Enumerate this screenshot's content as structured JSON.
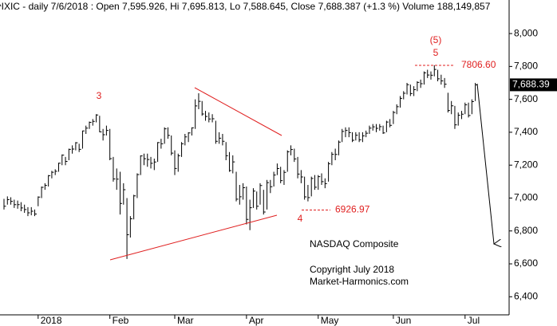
{
  "chart_data": {
    "type": "ohlc",
    "title": "^IXIC - daily 7/6/2018 : Open 7,595.926, Hi 7,695.813, Lo 7,588.645, Close 7,688.387 (+1.3 %) Volume 188,149,857",
    "categories": [
      null,
      null,
      null,
      null,
      null,
      null,
      null,
      null,
      null,
      null,
      "2018",
      null,
      null,
      null,
      null,
      null,
      null,
      null,
      null,
      null,
      null,
      null,
      null,
      null,
      null,
      null,
      null,
      null,
      null,
      null,
      null,
      "Feb",
      null,
      null,
      null,
      null,
      null,
      null,
      null,
      null,
      null,
      null,
      null,
      null,
      null,
      null,
      null,
      null,
      null,
      null,
      "Mar",
      null,
      null,
      null,
      null,
      null,
      null,
      null,
      null,
      null,
      null,
      null,
      null,
      null,
      null,
      null,
      null,
      null,
      null,
      null,
      null,
      "Apr",
      null,
      null,
      null,
      null,
      null,
      null,
      null,
      null,
      null,
      null,
      null,
      null,
      null,
      null,
      null,
      null,
      null,
      null,
      null,
      null,
      "May",
      null,
      null,
      null,
      null,
      null,
      null,
      null,
      null,
      null,
      null,
      null,
      null,
      null,
      null,
      null,
      null,
      null,
      null,
      null,
      null,
      null,
      "Jun",
      null,
      null,
      null,
      null,
      null,
      null,
      null,
      null,
      null,
      null,
      null,
      null,
      null,
      null,
      null,
      null,
      null,
      null,
      null,
      null,
      "Jul",
      null,
      null,
      null
    ],
    "high": [
      6995,
      7010,
      7005,
      6990,
      6985,
      6975,
      6960,
      6945,
      6945,
      6930,
      7010,
      7070,
      7090,
      7140,
      7165,
      7175,
      7215,
      7265,
      7250,
      7300,
      7320,
      7340,
      7330,
      7410,
      7440,
      7465,
      7480,
      7510,
      7500,
      7420,
      7440,
      7420,
      7250,
      7180,
      7160,
      7090,
      7000,
      6890,
      7020,
      7150,
      7260,
      7270,
      7270,
      7250,
      7240,
      7340,
      7360,
      7430,
      7430,
      7380,
      7290,
      7270,
      7340,
      7390,
      7400,
      7430,
      7600,
      7637,
      7590,
      7530,
      7520,
      7510,
      7470,
      7400,
      7390,
      7340,
      7280,
      7260,
      7160,
      7080,
      7090,
      7070,
      6990,
      7060,
      7040,
      7090,
      7050,
      7110,
      7110,
      7160,
      7210,
      7190,
      7170,
      7290,
      7320,
      7300,
      7250,
      7170,
      7130,
      7080,
      7130,
      7140,
      7140,
      7150,
      7120,
      7220,
      7280,
      7300,
      7350,
      7420,
      7430,
      7430,
      7400,
      7400,
      7400,
      7400,
      7410,
      7440,
      7450,
      7450,
      7450,
      7440,
      7470,
      7480,
      7530,
      7570,
      7620,
      7650,
      7700,
      7690,
      7680,
      7710,
      7720,
      7770,
      7780,
      7770,
      7807,
      7780,
      7750,
      7730,
      7640,
      7590,
      7560,
      7520,
      7530,
      7580,
      7580,
      7600,
      7700
    ],
    "low": [
      6930,
      6960,
      6960,
      6940,
      6935,
      6920,
      6910,
      6890,
      6895,
      6890,
      6950,
      7000,
      7050,
      7070,
      7120,
      7140,
      7160,
      7200,
      7200,
      7230,
      7270,
      7290,
      7280,
      7300,
      7390,
      7420,
      7440,
      7460,
      7400,
      7350,
      7380,
      7230,
      7100,
      7050,
      6900,
      6960,
      6630,
      6760,
      6870,
      7000,
      7140,
      7200,
      7190,
      7180,
      7170,
      7220,
      7300,
      7330,
      7360,
      7260,
      7140,
      7160,
      7250,
      7320,
      7340,
      7380,
      7420,
      7540,
      7500,
      7470,
      7460,
      7460,
      7330,
      7330,
      7320,
      7230,
      7160,
      7150,
      6980,
      6960,
      6990,
      6840,
      6805,
      6940,
      6930,
      6960,
      6900,
      6930,
      7030,
      7070,
      7140,
      7090,
      7080,
      7160,
      7260,
      7220,
      7120,
      7090,
      6990,
      6980,
      7010,
      7050,
      7050,
      7080,
      7060,
      7100,
      7200,
      7230,
      7260,
      7340,
      7370,
      7370,
      7340,
      7350,
      7340,
      7340,
      7370,
      7390,
      7410,
      7400,
      7410,
      7390,
      7400,
      7430,
      7450,
      7510,
      7550,
      7600,
      7630,
      7620,
      7620,
      7650,
      7670,
      7690,
      7730,
      7720,
      7740,
      7710,
      7690,
      7670,
      7520,
      7510,
      7420,
      7440,
      7480,
      7510,
      7490,
      7510,
      7590
    ],
    "close": [
      6950,
      6990,
      6980,
      6960,
      6960,
      6940,
      6930,
      6910,
      6920,
      6903,
      7006,
      7065,
      7077,
      7136,
      7157,
      7163,
      7212,
      7261,
      7223,
      7296,
      7298,
      7336,
      7296,
      7408,
      7425,
      7460,
      7466,
      7505,
      7402,
      7385,
      7411,
      7240,
      7116,
      7115,
      6967,
      7051,
      6777,
      6874,
      7013,
      7143,
      7256,
      7239,
      7234,
      7211,
      7219,
      7337,
      7330,
      7421,
      7381,
      7273,
      7180,
      7257,
      7330,
      7372,
      7396,
      7427,
      7560,
      7588,
      7511,
      7496,
      7481,
      7482,
      7345,
      7364,
      7345,
      7257,
      7167,
      7220,
      6993,
      7008,
      7063,
      6870,
      6941,
      7042,
      6950,
      7076,
      6915,
      7094,
      7069,
      7140,
      7179,
      7106,
      7156,
      7281,
      7295,
      7238,
      7146,
      7128,
      7007,
      7003,
      7119,
      7066,
      7130,
      7100,
      7088,
      7209,
      7266,
      7265,
      7340,
      7405,
      7411,
      7398,
      7351,
      7382,
      7354,
      7378,
      7394,
      7425,
      7433,
      7424,
      7434,
      7396,
      7462,
      7442,
      7520,
      7555,
      7606,
      7637,
      7689,
      7635,
      7659,
      7703,
      7695,
      7761,
      7748,
      7747,
      7782,
      7725,
      7712,
      7692,
      7532,
      7561,
      7445,
      7503,
      7510,
      7567,
      7502,
      7586,
      7688
    ],
    "color": "#000000",
    "ylim": [
      6290,
      8204
    ],
    "yticks": [
      {
        "value": 6400,
        "label": "6,400"
      },
      {
        "value": 6600,
        "label": "6,600"
      },
      {
        "value": 6800,
        "label": "6,800"
      },
      {
        "value": 7000,
        "label": "7,000"
      },
      {
        "value": 7200,
        "label": "7,200"
      },
      {
        "value": 7400,
        "label": "7,400"
      },
      {
        "value": 7600,
        "label": "7,600"
      },
      {
        "value": 7800,
        "label": "7,800"
      },
      {
        "value": 8000,
        "label": "8,000"
      }
    ],
    "last_price": {
      "value": 7688.39,
      "label": "7,688.39"
    },
    "levels": [
      {
        "value": 7806.6,
        "label": "7806.60"
      },
      {
        "value": 6926.97,
        "label": "6926.97"
      }
    ],
    "wave_labels": [
      "3",
      "4",
      "(5)",
      "5"
    ],
    "annotations": [
      "NASDAQ Composite",
      "Copyright July 2018",
      "Market-Harmonics.com"
    ]
  }
}
